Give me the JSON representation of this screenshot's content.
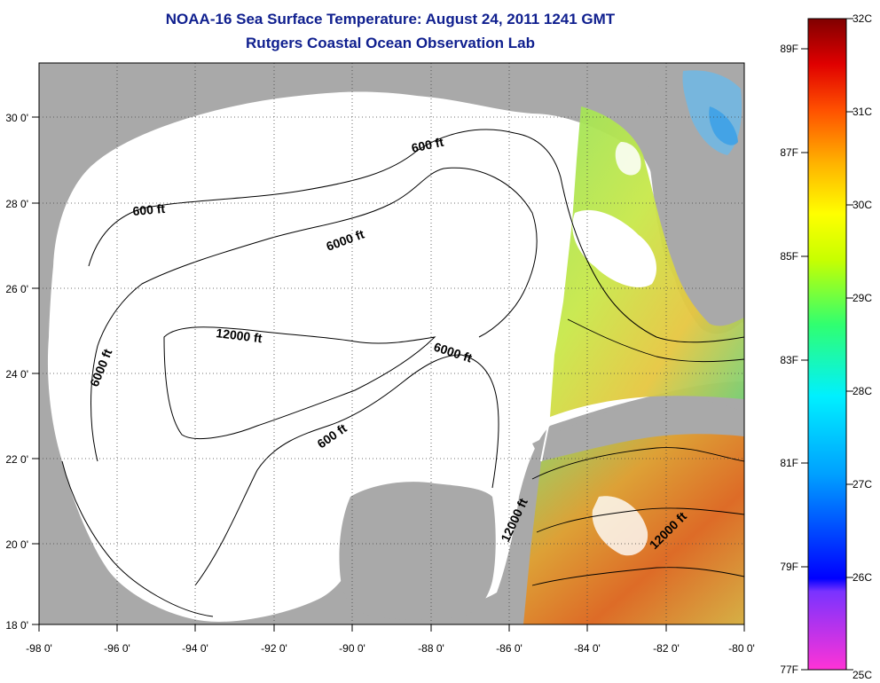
{
  "title": {
    "line1": "NOAA-16 Sea Surface Temperature:  August 24, 2011 1241 GMT",
    "line2": "Rutgers Coastal Ocean Observation Lab"
  },
  "axes": {
    "lon_labels": [
      "-98 0'",
      "-96 0'",
      "-94 0'",
      "-92 0'",
      "-90 0'",
      "-88 0'",
      "-86 0'",
      "-84 0'",
      "-82 0'",
      "-80 0'"
    ],
    "lat_labels": [
      "18 0'",
      "20 0'",
      "22 0'",
      "24 0'",
      "26 0'",
      "28 0'",
      "30 0'"
    ]
  },
  "contours": [
    {
      "label": "600 ft"
    },
    {
      "label": "600 ft"
    },
    {
      "label": "6000 ft"
    },
    {
      "label": "6000 ft"
    },
    {
      "label": "6000 ft"
    },
    {
      "label": "12000 ft"
    },
    {
      "label": "600 ft"
    },
    {
      "label": "12000 ft"
    },
    {
      "label": "12000 ft"
    }
  ],
  "colorbar": {
    "fahrenheit": [
      "89F",
      "87F",
      "85F",
      "83F",
      "81F",
      "79F",
      "77F"
    ],
    "celsius": [
      "32C",
      "31C",
      "30C",
      "29C",
      "28C",
      "27C",
      "26C",
      "25C"
    ]
  },
  "colors": {
    "title": "#10208f",
    "land": "#a9a9a9",
    "water": "#ffffff"
  }
}
